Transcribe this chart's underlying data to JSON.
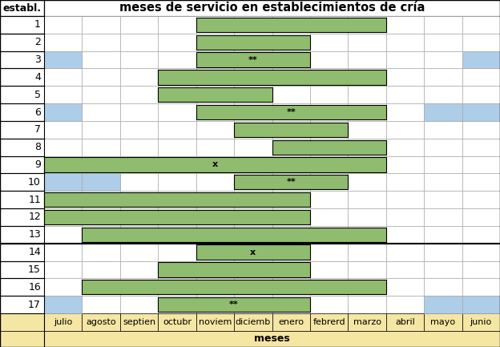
{
  "title": "meses de servicio en establecimientos de cría",
  "xlabel": "meses",
  "months": [
    "julio",
    "agosto",
    "septien",
    "octubr",
    "noviem",
    "diciemb",
    "enero",
    "febrerd",
    "marzo",
    "abril",
    "mayo",
    "junio"
  ],
  "n_months": 12,
  "n_rows": 17,
  "green_bars": [
    {
      "row": 1,
      "start": 4,
      "end": 9,
      "label": ""
    },
    {
      "row": 2,
      "start": 4,
      "end": 7,
      "label": ""
    },
    {
      "row": 3,
      "start": 4,
      "end": 7,
      "label": "**"
    },
    {
      "row": 4,
      "start": 3,
      "end": 9,
      "label": ""
    },
    {
      "row": 5,
      "start": 3,
      "end": 6,
      "label": ""
    },
    {
      "row": 6,
      "start": 4,
      "end": 9,
      "label": "**"
    },
    {
      "row": 7,
      "start": 5,
      "end": 8,
      "label": ""
    },
    {
      "row": 8,
      "start": 6,
      "end": 9,
      "label": ""
    },
    {
      "row": 9,
      "start": 0,
      "end": 9,
      "label": "x"
    },
    {
      "row": 10,
      "start": 5,
      "end": 8,
      "label": "**"
    },
    {
      "row": 11,
      "start": 0,
      "end": 7,
      "label": ""
    },
    {
      "row": 12,
      "start": 0,
      "end": 7,
      "label": ""
    },
    {
      "row": 13,
      "start": 1,
      "end": 9,
      "label": ""
    },
    {
      "row": 14,
      "start": 4,
      "end": 7,
      "label": "x"
    },
    {
      "row": 15,
      "start": 3,
      "end": 7,
      "label": ""
    },
    {
      "row": 16,
      "start": 1,
      "end": 9,
      "label": ""
    },
    {
      "row": 17,
      "start": 3,
      "end": 7,
      "label": "**"
    }
  ],
  "blue_cells": [
    {
      "row": 3,
      "col": 0
    },
    {
      "row": 3,
      "col": 11
    },
    {
      "row": 6,
      "col": 0
    },
    {
      "row": 6,
      "col": 10
    },
    {
      "row": 6,
      "col": 11
    },
    {
      "row": 10,
      "col": 0
    },
    {
      "row": 10,
      "col": 1
    },
    {
      "row": 17,
      "col": 0
    },
    {
      "row": 17,
      "col": 10
    },
    {
      "row": 17,
      "col": 11
    }
  ],
  "green_color": "#8FBC6E",
  "blue_color": "#AECDE8",
  "grid_color": "#AAAAAA",
  "month_label_bg": "#F5E6A3",
  "title_fontsize": 10.5,
  "cell_fontsize": 8,
  "row_label_fontsize": 9,
  "month_fontsize": 8
}
